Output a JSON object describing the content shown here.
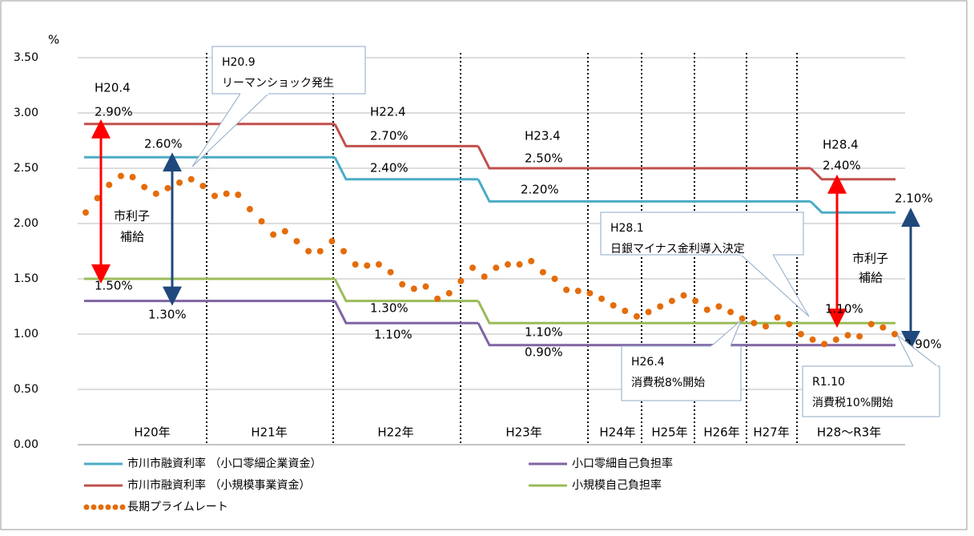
{
  "chart_data": {
    "type": "step-line",
    "y_label": "%",
    "ylim": [
      0,
      3.5
    ],
    "yticks": [
      {
        "value": 0,
        "label": "0.00"
      },
      {
        "value": 0.5,
        "label": "0.50"
      },
      {
        "value": 1,
        "label": "1.00"
      },
      {
        "value": 1.5,
        "label": "1.50"
      },
      {
        "value": 2,
        "label": "2.00"
      },
      {
        "value": 2.5,
        "label": "2.50"
      },
      {
        "value": 3,
        "label": "3.00"
      },
      {
        "value": 3.5,
        "label": "3.50"
      }
    ],
    "grid": true,
    "categories": [
      "H20年",
      "H21年",
      "H22年",
      "H23年",
      "H24年",
      "H25年",
      "H26年",
      "H27年",
      "H28〜R3年"
    ],
    "series": [
      {
        "name": "市川市融資利率 （小口零細企業資金）",
        "color": "#4bacc6",
        "values": [
          2.6,
          2.6,
          2.4,
          2.2,
          2.2,
          2.2,
          2.2,
          2.2,
          2.1
        ]
      },
      {
        "name": "市川市融資利率 （小規模事業資金）",
        "color": "#c0504d",
        "values": [
          2.9,
          2.9,
          2.7,
          2.5,
          2.5,
          2.5,
          2.5,
          2.5,
          2.4
        ]
      },
      {
        "name": "小口零細自己負担率",
        "color": "#8064a2",
        "values": [
          1.3,
          1.3,
          1.1,
          0.9,
          0.9,
          0.9,
          0.9,
          0.9,
          0.9
        ]
      },
      {
        "name": "小規模自己負担率",
        "color": "#9bbb59",
        "values": [
          1.5,
          1.5,
          1.3,
          1.1,
          1.1,
          1.1,
          1.1,
          1.1,
          1.1
        ]
      }
    ],
    "prime_rate": {
      "name": "長期プライムレート",
      "color": "#e46c0a",
      "values": [
        2.1,
        2.23,
        2.35,
        2.43,
        2.42,
        2.33,
        2.27,
        2.32,
        2.37,
        2.4,
        2.34,
        2.25,
        2.27,
        2.26,
        2.13,
        2.02,
        1.9,
        1.93,
        1.84,
        1.75,
        1.75,
        1.84,
        1.75,
        1.63,
        1.62,
        1.63,
        1.56,
        1.45,
        1.41,
        1.43,
        1.32,
        1.37,
        1.48,
        1.6,
        1.52,
        1.6,
        1.63,
        1.63,
        1.66,
        1.56,
        1.5,
        1.4,
        1.39,
        1.37,
        1.32,
        1.26,
        1.21,
        1.16,
        1.2,
        1.25,
        1.3,
        1.35,
        1.3,
        1.22,
        1.25,
        1.2,
        1.14,
        1.1,
        1.07,
        1.15,
        1.09,
        1.0,
        0.95,
        0.91,
        0.95,
        0.99,
        0.98,
        1.09,
        1.06,
        1.0
      ]
    },
    "annotations": [
      "H20.4",
      "2.90%",
      "2.60%",
      "1.50%",
      "1.30%",
      "H22.4",
      "2.70%",
      "2.40%",
      "1.30%",
      "1.10%",
      "H23.4",
      "2.50%",
      "2.20%",
      "1.10%",
      "0.90%",
      "H28.4",
      "2.40%",
      "2.10%",
      "1.10%",
      "0.90%",
      "市利子",
      "補給",
      "市利子",
      "補給"
    ],
    "callouts": [
      {
        "lines": [
          "H20.9",
          "リーマンショック発生"
        ]
      },
      {
        "lines": [
          "H28.1",
          "日銀マイナス金利導入決定"
        ]
      },
      {
        "lines": [
          "H26.4",
          "消費税8%開始"
        ]
      },
      {
        "lines": [
          "R1.10",
          "消費税10%開始"
        ]
      }
    ]
  }
}
